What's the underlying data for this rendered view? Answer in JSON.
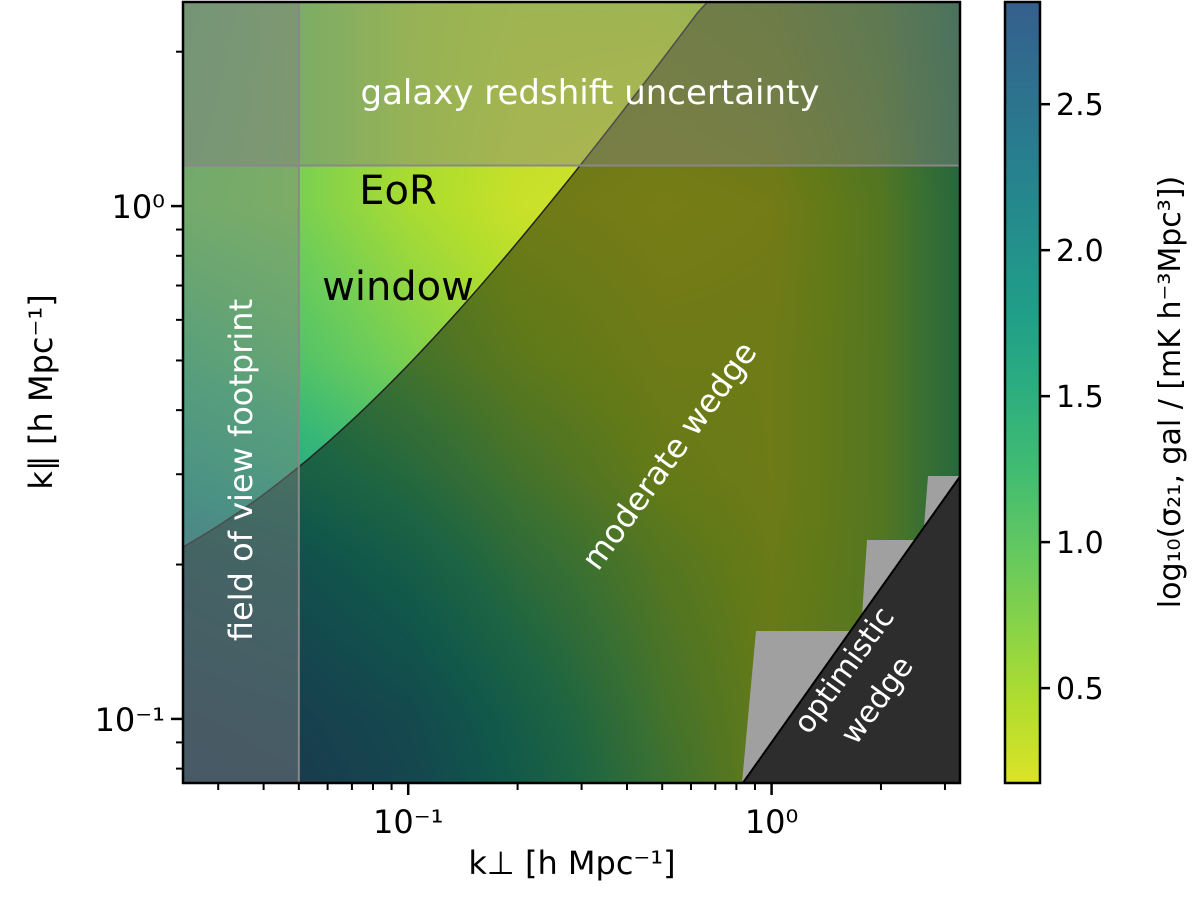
{
  "chart_data": {
    "type": "heatmap",
    "xlabel": "k⊥  [h Mpc⁻¹]",
    "ylabel": "k∥  [h Mpc⁻¹]",
    "xscale": "log",
    "yscale": "log",
    "xlim": [
      0.024,
      3.3
    ],
    "ylim": [
      0.075,
      2.5
    ],
    "xticks": [
      {
        "value": 0.1,
        "label": "10⁻¹"
      },
      {
        "value": 1,
        "label": "10⁰"
      }
    ],
    "yticks": [
      {
        "value": 0.1,
        "label": "10⁻¹"
      },
      {
        "value": 1,
        "label": "10⁰"
      }
    ],
    "colorbar": {
      "label": "log₁₀(σ₂₁, gal / [mK h⁻³Mpc³])",
      "range": [
        0.175,
        2.85
      ],
      "ticks": [
        {
          "value": 0.5,
          "label": "0.5"
        },
        {
          "value": 1.0,
          "label": "1.0"
        },
        {
          "value": 1.5,
          "label": "1.5"
        },
        {
          "value": 2.0,
          "label": "2.0"
        },
        {
          "value": 2.5,
          "label": "2.5"
        }
      ],
      "colormap": "viridis_r"
    },
    "grid_kperp": [
      0.025,
      0.05,
      0.1,
      0.2,
      0.5,
      1,
      2,
      3.3
    ],
    "grid_kpar": [
      0.075,
      0.1,
      0.2,
      0.3,
      0.5,
      1,
      2.5
    ],
    "values_log10": [
      [
        2.7,
        2.6,
        2.3,
        1.7,
        0.9,
        0.4,
        0.6,
        1.2
      ],
      [
        2.6,
        2.5,
        2.2,
        1.6,
        0.8,
        0.4,
        0.6,
        1.2
      ],
      [
        2.2,
        2.0,
        1.6,
        1.1,
        0.6,
        0.35,
        0.6,
        1.2
      ],
      [
        1.7,
        1.5,
        1.2,
        0.8,
        0.4,
        0.3,
        0.6,
        1.2
      ],
      [
        1.3,
        1.1,
        0.8,
        0.5,
        0.3,
        0.3,
        0.6,
        1.2
      ],
      [
        0.9,
        0.8,
        0.5,
        0.3,
        0.2,
        0.25,
        0.6,
        1.2
      ],
      [
        1.0,
        0.8,
        0.5,
        0.4,
        0.4,
        0.5,
        0.8,
        1.3
      ]
    ],
    "regions": {
      "fov_footprint_kperp_max": 0.05,
      "galaxy_redshift_kpar_min": 1.2,
      "moderate_wedge": {
        "intercept": 0.13,
        "slope": 3.6
      },
      "optimistic_wedge": {
        "slope": 0.09
      }
    },
    "annotations": {
      "galaxy": "galaxy redshift uncertainty",
      "eor_line1": "EoR",
      "eor_line2": "window",
      "fov": "field of view footprint",
      "moderate": "moderate wedge",
      "optimistic_line1": "optimistic",
      "optimistic_line2": "wedge"
    },
    "colors": {
      "optimistic_wedge": "#2d2d2d",
      "nan": "#a0a0a0",
      "region_overlay": "#808080"
    }
  }
}
